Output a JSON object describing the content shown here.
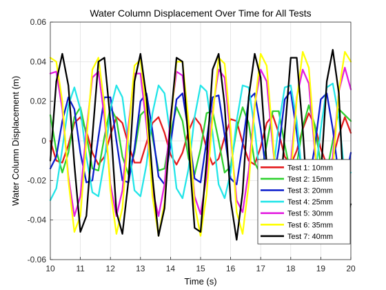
{
  "chart_data": {
    "type": "line",
    "title": "Water Column Displacement Over Time for All Tests",
    "xlabel": "Time (s)",
    "ylabel": "Water Column Displacement (m)",
    "xlim": [
      10,
      20
    ],
    "ylim": [
      -0.06,
      0.06
    ],
    "xticks": [
      "10",
      "11",
      "12",
      "13",
      "14",
      "15",
      "16",
      "17",
      "18",
      "19",
      "20"
    ],
    "yticks": [
      "-0.06",
      "-0.04",
      "-0.02",
      "0",
      "0.02",
      "0.04",
      "0.06"
    ],
    "grid": true,
    "legend_position": "bottom-right",
    "series": [
      {
        "name": "Test 1: 10mm",
        "color": "#e41a1c",
        "x": [
          10.0,
          10.2,
          10.4,
          10.6,
          10.8,
          11.0,
          11.2,
          11.4,
          11.6,
          11.8,
          12.0,
          12.2,
          12.4,
          12.6,
          12.8,
          13.0,
          13.2,
          13.4,
          13.6,
          13.8,
          14.0,
          14.2,
          14.4,
          14.6,
          14.8,
          15.0,
          15.2,
          15.4,
          15.6,
          15.8,
          16.0,
          16.2,
          16.4,
          16.6,
          16.8,
          17.0,
          17.2,
          17.4,
          17.6,
          17.8,
          18.0,
          18.2,
          18.4,
          18.6,
          18.8,
          19.0,
          19.2,
          19.4,
          19.6,
          19.8,
          20.0
        ],
        "y": [
          0.0,
          -0.01,
          -0.011,
          -0.002,
          0.009,
          0.012,
          0.005,
          -0.006,
          -0.012,
          -0.008,
          0.003,
          0.012,
          0.009,
          -0.002,
          -0.011,
          -0.011,
          -0.001,
          0.009,
          0.012,
          0.004,
          -0.007,
          -0.012,
          -0.006,
          0.005,
          0.012,
          0.008,
          -0.004,
          -0.012,
          -0.009,
          0.002,
          0.011,
          0.01,
          -0.001,
          -0.01,
          -0.012,
          -0.003,
          0.009,
          0.013,
          0.004,
          -0.008,
          -0.012,
          -0.005,
          0.006,
          0.014,
          0.008,
          -0.004,
          -0.012,
          -0.009,
          0.003,
          0.012,
          0.004
        ]
      },
      {
        "name": "Test 2: 15mm",
        "color": "#2ed12e",
        "x": [
          10.0,
          10.2,
          10.4,
          10.6,
          10.8,
          11.0,
          11.2,
          11.4,
          11.6,
          11.8,
          12.0,
          12.2,
          12.4,
          12.6,
          12.8,
          13.0,
          13.2,
          13.4,
          13.6,
          13.8,
          14.0,
          14.2,
          14.4,
          14.6,
          14.8,
          15.0,
          15.2,
          15.4,
          15.6,
          15.8,
          16.0,
          16.2,
          16.4,
          16.6,
          16.8,
          17.0,
          17.2,
          17.4,
          17.6,
          17.8,
          18.0,
          18.2,
          18.4,
          18.6,
          18.8,
          19.0,
          19.2,
          19.4,
          19.6,
          19.8,
          20.0
        ],
        "y": [
          0.013,
          -0.005,
          -0.016,
          -0.006,
          0.012,
          0.017,
          0.003,
          -0.014,
          -0.015,
          0.002,
          0.017,
          0.011,
          -0.008,
          -0.017,
          -0.006,
          0.013,
          0.016,
          0.002,
          -0.015,
          -0.014,
          0.004,
          0.017,
          0.01,
          -0.009,
          -0.017,
          -0.004,
          0.014,
          0.015,
          0.0,
          -0.016,
          -0.013,
          0.006,
          0.017,
          0.009,
          -0.011,
          -0.017,
          -0.002,
          0.015,
          0.015,
          -0.002,
          -0.017,
          -0.012,
          0.007,
          0.018,
          0.008,
          -0.012,
          -0.016,
          0.0,
          0.016,
          0.013,
          0.01
        ]
      },
      {
        "name": "Test 3: 20mm",
        "color": "#0a1ccc",
        "x": [
          10.0,
          10.2,
          10.4,
          10.6,
          10.8,
          11.0,
          11.2,
          11.4,
          11.6,
          11.8,
          12.0,
          12.2,
          12.4,
          12.6,
          12.8,
          13.0,
          13.2,
          13.4,
          13.6,
          13.8,
          14.0,
          14.2,
          14.4,
          14.6,
          14.8,
          15.0,
          15.2,
          15.4,
          15.6,
          15.8,
          16.0,
          16.2,
          16.4,
          16.6,
          16.8,
          17.0,
          17.2,
          17.4,
          17.6,
          17.8,
          18.0,
          18.2,
          18.4,
          18.6,
          18.8,
          19.0,
          19.2,
          19.4,
          19.6,
          19.8,
          20.0
        ],
        "y": [
          -0.014,
          -0.008,
          0.01,
          0.022,
          0.016,
          -0.006,
          -0.021,
          -0.02,
          0.002,
          0.022,
          0.022,
          0.0,
          -0.02,
          -0.021,
          -0.004,
          0.02,
          0.024,
          0.005,
          -0.018,
          -0.022,
          -0.002,
          0.021,
          0.024,
          0.004,
          -0.019,
          -0.021,
          0.0,
          0.022,
          0.023,
          0.003,
          -0.019,
          -0.022,
          -0.002,
          0.021,
          0.024,
          0.006,
          -0.018,
          -0.022,
          -0.004,
          0.021,
          0.025,
          0.004,
          -0.019,
          -0.021,
          -0.003,
          0.021,
          0.024,
          0.006,
          -0.018,
          -0.022,
          -0.006
        ]
      },
      {
        "name": "Test 4: 25mm",
        "color": "#22e5e8",
        "x": [
          10.0,
          10.2,
          10.4,
          10.6,
          10.8,
          11.0,
          11.2,
          11.4,
          11.6,
          11.8,
          12.0,
          12.2,
          12.4,
          12.6,
          12.8,
          13.0,
          13.2,
          13.4,
          13.6,
          13.8,
          14.0,
          14.2,
          14.4,
          14.6,
          14.8,
          15.0,
          15.2,
          15.4,
          15.6,
          15.8,
          16.0,
          16.2,
          16.4,
          16.6,
          16.8,
          17.0,
          17.2,
          17.4,
          17.6,
          17.8,
          18.0,
          18.2,
          18.4,
          18.6,
          18.8,
          19.0,
          19.2,
          19.4,
          19.6,
          19.8,
          20.0
        ],
        "y": [
          -0.03,
          -0.024,
          -0.004,
          0.018,
          0.027,
          0.016,
          -0.008,
          -0.026,
          -0.028,
          -0.01,
          0.016,
          0.028,
          0.022,
          -0.002,
          -0.025,
          -0.028,
          -0.012,
          0.014,
          0.028,
          0.024,
          0.002,
          -0.024,
          -0.029,
          -0.014,
          0.012,
          0.028,
          0.025,
          0.004,
          -0.022,
          -0.029,
          -0.016,
          0.01,
          0.028,
          0.027,
          0.006,
          -0.022,
          -0.028,
          -0.017,
          0.008,
          0.027,
          0.028,
          0.01,
          -0.02,
          -0.029,
          -0.019,
          0.006,
          0.027,
          0.029,
          0.012,
          -0.018,
          -0.016
        ]
      },
      {
        "name": "Test 5: 30mm",
        "color": "#e31ee0",
        "x": [
          10.0,
          10.2,
          10.4,
          10.6,
          10.8,
          11.0,
          11.2,
          11.4,
          11.6,
          11.8,
          12.0,
          12.2,
          12.4,
          12.6,
          12.8,
          13.0,
          13.2,
          13.4,
          13.6,
          13.8,
          14.0,
          14.2,
          14.4,
          14.6,
          14.8,
          15.0,
          15.2,
          15.4,
          15.6,
          15.8,
          16.0,
          16.2,
          16.4,
          16.6,
          16.8,
          17.0,
          17.2,
          17.4,
          17.6,
          17.8,
          18.0,
          18.2,
          18.4,
          18.6,
          18.8,
          19.0,
          19.2,
          19.4,
          19.6,
          19.8,
          20.0
        ],
        "y": [
          0.034,
          0.035,
          0.016,
          -0.018,
          -0.038,
          -0.028,
          0.005,
          0.032,
          0.035,
          0.012,
          -0.022,
          -0.038,
          -0.025,
          0.008,
          0.034,
          0.034,
          0.008,
          -0.025,
          -0.038,
          -0.022,
          0.012,
          0.035,
          0.033,
          0.005,
          -0.028,
          -0.037,
          -0.018,
          0.015,
          0.036,
          0.032,
          0.002,
          -0.03,
          -0.036,
          -0.015,
          0.018,
          0.036,
          0.03,
          -0.002,
          -0.032,
          -0.035,
          -0.012,
          0.022,
          0.036,
          0.029,
          -0.005,
          -0.034,
          -0.034,
          -0.008,
          0.025,
          0.037,
          0.026
        ]
      },
      {
        "name": "Test 6: 35mm",
        "color": "#ffff00",
        "x": [
          10.0,
          10.2,
          10.4,
          10.6,
          10.8,
          11.0,
          11.2,
          11.4,
          11.6,
          11.8,
          12.0,
          12.2,
          12.4,
          12.6,
          12.8,
          13.0,
          13.2,
          13.4,
          13.6,
          13.8,
          14.0,
          14.2,
          14.4,
          14.6,
          14.8,
          15.0,
          15.2,
          15.4,
          15.6,
          15.8,
          16.0,
          16.2,
          16.4,
          16.6,
          16.8,
          17.0,
          17.2,
          17.4,
          17.6,
          17.8,
          18.0,
          18.2,
          18.4,
          18.6,
          18.8,
          19.0,
          19.2,
          19.4,
          19.6,
          19.8,
          20.0
        ],
        "y": [
          0.042,
          0.04,
          0.02,
          -0.02,
          -0.046,
          -0.038,
          0.0,
          0.036,
          0.042,
          0.018,
          -0.025,
          -0.047,
          -0.034,
          0.004,
          0.038,
          0.041,
          0.014,
          -0.028,
          -0.048,
          -0.031,
          0.008,
          0.04,
          0.04,
          0.01,
          -0.032,
          -0.048,
          -0.027,
          0.012,
          0.042,
          0.039,
          0.006,
          -0.036,
          -0.047,
          -0.022,
          0.017,
          0.044,
          0.038,
          0.002,
          -0.039,
          -0.046,
          -0.018,
          0.021,
          0.045,
          0.037,
          -0.002,
          -0.042,
          -0.045,
          -0.014,
          0.025,
          0.045,
          0.04
        ]
      },
      {
        "name": "Test 7: 40mm",
        "color": "#000000",
        "x": [
          10.0,
          10.2,
          10.4,
          10.6,
          10.8,
          11.0,
          11.2,
          11.4,
          11.6,
          11.8,
          12.0,
          12.2,
          12.4,
          12.6,
          12.8,
          13.0,
          13.2,
          13.4,
          13.6,
          13.8,
          14.0,
          14.2,
          14.4,
          14.6,
          14.8,
          15.0,
          15.2,
          15.4,
          15.6,
          15.8,
          16.0,
          16.2,
          16.4,
          16.6,
          16.8,
          17.0,
          17.2,
          17.4,
          17.6,
          17.8,
          18.0,
          18.2,
          18.4,
          18.6,
          18.8,
          19.0,
          19.2,
          19.4,
          19.6,
          19.8,
          20.0
        ],
        "y": [
          -0.01,
          0.03,
          0.044,
          0.028,
          -0.012,
          -0.046,
          -0.038,
          0.002,
          0.04,
          0.042,
          0.01,
          -0.036,
          -0.047,
          -0.02,
          0.03,
          0.044,
          0.022,
          -0.018,
          -0.048,
          -0.034,
          0.01,
          0.042,
          0.04,
          -0.002,
          -0.044,
          -0.046,
          -0.01,
          0.036,
          0.044,
          0.018,
          -0.03,
          -0.05,
          -0.026,
          0.022,
          0.044,
          0.032,
          -0.012,
          -0.048,
          -0.04,
          0.004,
          0.042,
          0.042,
          0.006,
          -0.04,
          -0.048,
          -0.018,
          0.03,
          0.046,
          0.024,
          -0.04,
          -0.032
        ]
      }
    ]
  }
}
